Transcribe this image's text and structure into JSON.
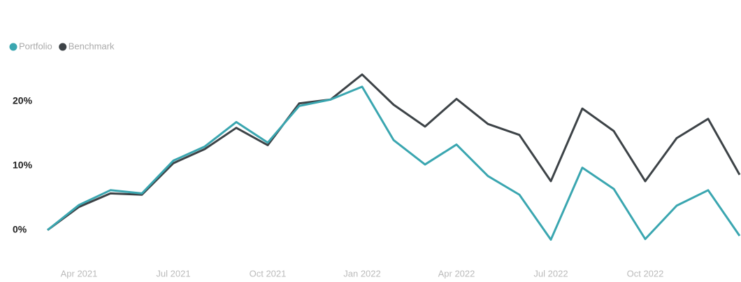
{
  "chart_data": {
    "type": "line",
    "categories": [
      null,
      "Apr 2021",
      null,
      null,
      "Jul 2021",
      null,
      null,
      "Oct 2021",
      null,
      null,
      "Jan 2022",
      null,
      null,
      "Apr 2022",
      null,
      null,
      "Jul 2022",
      null,
      null,
      "Oct 2022",
      null,
      null,
      null
    ],
    "series": [
      {
        "name": "Portfolio",
        "color": "#3aa6b0",
        "values": [
          0,
          3.9,
          6.2,
          5.7,
          10.8,
          13.0,
          16.8,
          13.6,
          19.3,
          20.3,
          22.3,
          14.0,
          10.2,
          13.3,
          8.4,
          5.5,
          -1.5,
          9.7,
          6.4,
          -1.4,
          3.8,
          6.2,
          -0.9
        ]
      },
      {
        "name": "Benchmark",
        "color": "#3d4347",
        "values": [
          0,
          3.6,
          5.7,
          5.5,
          10.4,
          12.6,
          15.9,
          13.2,
          19.7,
          20.3,
          24.2,
          19.5,
          16.1,
          20.4,
          16.5,
          14.8,
          7.6,
          18.9,
          15.4,
          7.6,
          14.3,
          17.3,
          8.6
        ]
      }
    ],
    "ylim": [
      -3.4,
      24.9
    ],
    "yticks": [
      {
        "value": 0,
        "label": "0%"
      },
      {
        "value": 10,
        "label": "10%"
      },
      {
        "value": 20,
        "label": "20%"
      }
    ],
    "grid": false,
    "legend": "top-left"
  }
}
